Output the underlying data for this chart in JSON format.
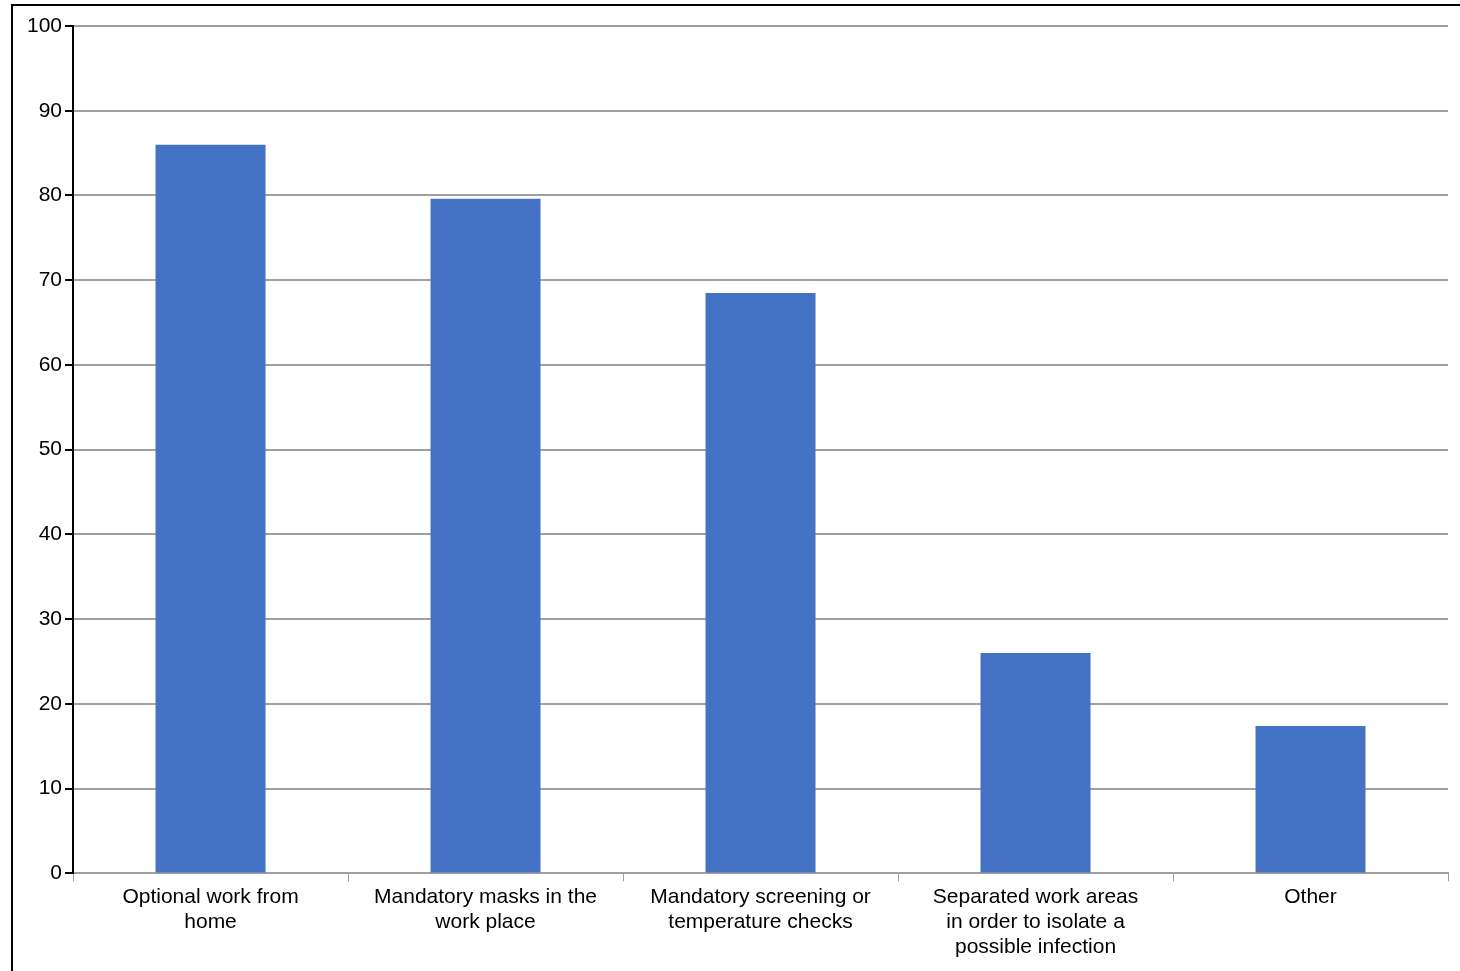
{
  "chart_data": {
    "type": "bar",
    "categories": [
      "Optional work from home",
      "Mandatory masks in the work place",
      "Mandatory screening or temperature checks",
      "Separated work areas in order to isolate a possible infection",
      "Other"
    ],
    "values": [
      86,
      79.6,
      68.5,
      26,
      17.4
    ],
    "color": "#4472c4",
    "ylim": [
      0,
      100
    ],
    "yticks": [
      0,
      10,
      20,
      30,
      40,
      50,
      60,
      70,
      80,
      90,
      100
    ],
    "grid": "y"
  }
}
